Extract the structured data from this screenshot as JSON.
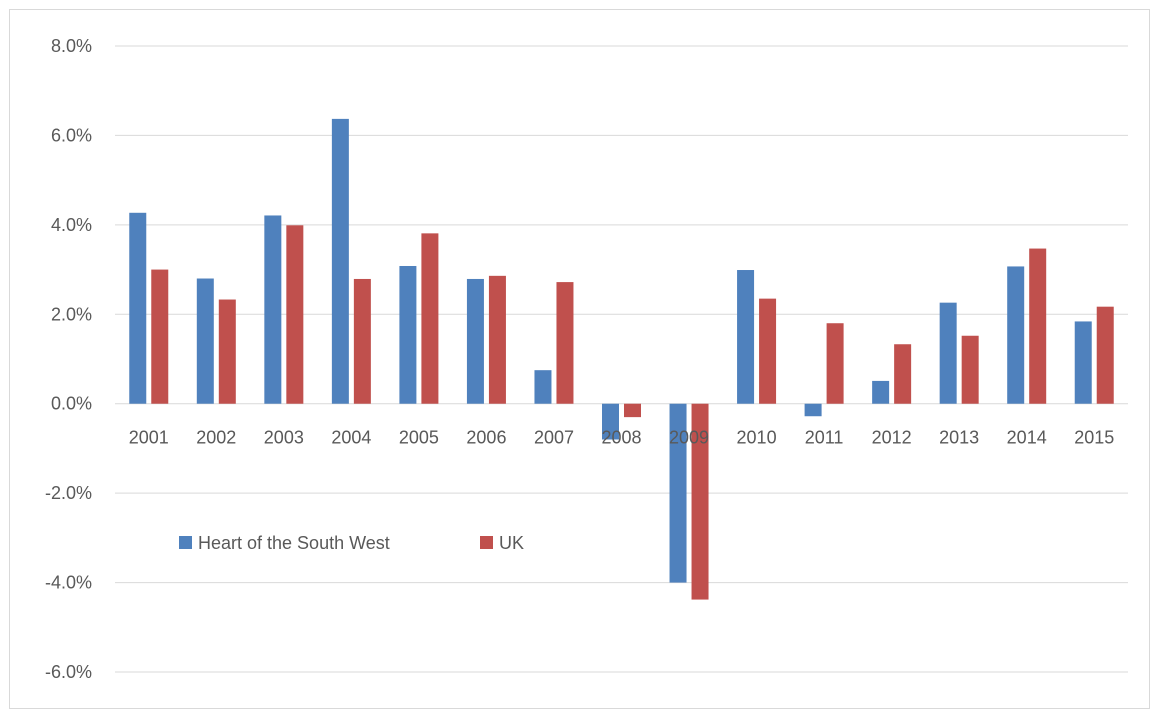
{
  "chart_data": {
    "type": "bar",
    "categories": [
      "2001",
      "2002",
      "2003",
      "2004",
      "2005",
      "2006",
      "2007",
      "2008",
      "2009",
      "2010",
      "2011",
      "2012",
      "2013",
      "2014",
      "2015"
    ],
    "series": [
      {
        "name": "Heart of the South West",
        "color": "#4f81bd",
        "values": [
          4.27,
          2.8,
          4.21,
          6.37,
          3.08,
          2.79,
          0.75,
          -0.8,
          -4.0,
          2.99,
          -0.28,
          0.51,
          2.26,
          3.07,
          1.84
        ]
      },
      {
        "name": "UK",
        "color": "#c0504d",
        "values": [
          3.0,
          2.33,
          3.99,
          2.79,
          3.81,
          2.86,
          2.72,
          -0.3,
          -4.38,
          2.35,
          1.8,
          1.33,
          1.52,
          3.47,
          2.17
        ]
      }
    ],
    "yticks": [
      "8.0%",
      "6.0%",
      "4.0%",
      "2.0%",
      "0.0%",
      "-2.0%",
      "-4.0%",
      "-6.0%"
    ],
    "ylim": [
      -6,
      8
    ],
    "grid": true,
    "legend_position": "lower-left inside"
  }
}
